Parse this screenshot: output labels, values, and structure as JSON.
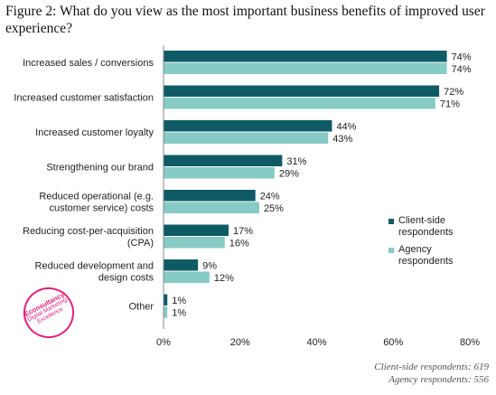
{
  "page": {
    "title": "Figure 2: What do you view as the most important business benefits of improved user experience?",
    "footnotes": [
      "Client-side respondents: 619",
      "Agency respondents: 556"
    ]
  },
  "logo": {
    "brand": "Econsultancy",
    "tagline": "Digital Marketing Excellence"
  },
  "colors": {
    "client": "#0e5b66",
    "agency": "#86cbc5",
    "axis": "#888888"
  },
  "chart_data": {
    "type": "bar",
    "orientation": "horizontal",
    "categories": [
      [
        "Increased sales / conversions"
      ],
      [
        "Increased customer satisfaction"
      ],
      [
        "Increased customer loyalty"
      ],
      [
        "Strengthening our brand"
      ],
      [
        "Reduced operational (e.g.",
        "customer service) costs"
      ],
      [
        "Reducing cost-per-acquisition",
        "(CPA)"
      ],
      [
        "Reduced development and",
        "design costs"
      ],
      [
        "Other"
      ]
    ],
    "series": [
      {
        "name": "Client-side respondents",
        "values": [
          74,
          72,
          44,
          31,
          24,
          17,
          9,
          1
        ]
      },
      {
        "name": "Agency respondents",
        "values": [
          74,
          71,
          43,
          29,
          25,
          16,
          12,
          1
        ]
      }
    ],
    "value_suffix": "%",
    "xlim": [
      0,
      80
    ],
    "xticks": [
      0,
      20,
      40,
      60,
      80
    ],
    "xtick_labels": [
      "0%",
      "20%",
      "40%",
      "60%",
      "80%"
    ],
    "grid": false,
    "legend": "right"
  }
}
